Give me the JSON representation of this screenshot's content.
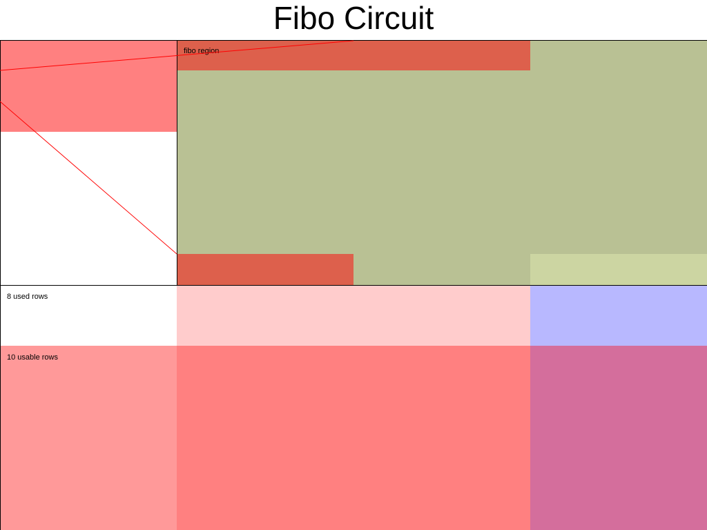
{
  "title": "Fibo Circuit",
  "labels": {
    "region": "fibo region",
    "used_rows": "8 used rows",
    "usable_rows": "10 usable rows"
  },
  "colors": {
    "red_light": "#ff8080",
    "red_dark": "#dd604c",
    "green": "#b9c194",
    "green_light": "#ccd5a2",
    "pink_light": "#ffcccc",
    "pink": "#ff9999",
    "blue": "#b8b8ff",
    "purple": "#d46e9c",
    "line_red": "#ff0000",
    "border": "#000000"
  }
}
